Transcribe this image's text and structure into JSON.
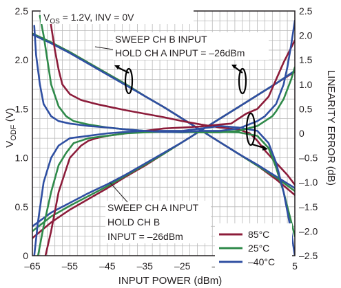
{
  "chart_data": {
    "type": "line",
    "xlabel": "INPUT POWER (dBm)",
    "ylabel_main": "V",
    "ylabel_sub": "ODF",
    "ylabel_unit": " (V)",
    "ylabel_right": "LINEARITY ERROR (dB)",
    "xlim": [
      -65,
      5
    ],
    "ylim": [
      0,
      2.5
    ],
    "y2lim": [
      -2.5,
      2.5
    ],
    "x_ticks": [
      -65,
      -55,
      -45,
      -35,
      -25,
      -15,
      -5,
      5
    ],
    "x_tick_labels": [
      "–65",
      "–55",
      "–45",
      "–35",
      "–25",
      "–15",
      "–5",
      "5"
    ],
    "y_ticks": [
      0,
      0.5,
      1.0,
      1.5,
      2.0,
      2.5
    ],
    "y_tick_labels": [
      "0",
      "0.5",
      "1.0",
      "1.5",
      "2.0",
      "2.5"
    ],
    "y2_ticks": [
      2.5,
      2.0,
      1.5,
      1.0,
      0.5,
      0,
      -0.5,
      -1.0,
      -1.5,
      -2.0,
      -2.5
    ],
    "y2_tick_labels": [
      "2.5",
      "2.0",
      "1.5",
      "1.0",
      "0.5",
      "0",
      "–0.5",
      "–1.0",
      "–1.5",
      "–2.0",
      "–2.5"
    ],
    "grid": true,
    "legend_position": "bottom-right",
    "annotations": {
      "condition_a": "V",
      "condition_sub": "OS",
      "condition_b": " = 1.2V, INV = 0V",
      "sweep_b_line1": "SWEEP CH B INPUT",
      "sweep_b_line2": "HOLD CH A INPUT = –26dBm",
      "sweep_a_line1": "SWEEP CH A INPUT",
      "sweep_a_line2": "HOLD CH B",
      "sweep_a_line3": "INPUT = –26dBm"
    },
    "series": [
      {
        "name": "85°C",
        "color": "#8c1c3a",
        "axis": "left",
        "group": "sweep_b_output",
        "x": [
          -65,
          -60,
          -55,
          -50,
          -45,
          -40,
          -35,
          -30,
          -25,
          -20,
          -15,
          -10,
          -5,
          0,
          5
        ],
        "y": [
          2.27,
          2.18,
          2.08,
          1.97,
          1.86,
          1.75,
          1.63,
          1.52,
          1.4,
          1.28,
          1.16,
          1.04,
          0.92,
          0.78,
          0.62
        ]
      },
      {
        "name": "25°C",
        "color": "#2f8a4a",
        "axis": "left",
        "group": "sweep_b_output",
        "x": [
          -65,
          -60,
          -55,
          -50,
          -45,
          -40,
          -35,
          -30,
          -25,
          -20,
          -15,
          -10,
          -5,
          0,
          5
        ],
        "y": [
          2.27,
          2.18,
          2.08,
          1.97,
          1.86,
          1.75,
          1.63,
          1.52,
          1.4,
          1.28,
          1.16,
          1.04,
          0.92,
          0.8,
          0.66
        ]
      },
      {
        "name": "–40°C",
        "color": "#2f4fa2",
        "axis": "left",
        "group": "sweep_b_output",
        "x": [
          -65,
          -60,
          -55,
          -50,
          -45,
          -40,
          -35,
          -30,
          -25,
          -20,
          -15,
          -10,
          -5,
          0,
          5
        ],
        "y": [
          2.26,
          2.17,
          2.07,
          1.96,
          1.85,
          1.74,
          1.63,
          1.52,
          1.4,
          1.28,
          1.16,
          1.04,
          0.93,
          0.81,
          0.69
        ]
      },
      {
        "name": "85°C",
        "color": "#8c1c3a",
        "axis": "left",
        "group": "sweep_a_output",
        "x": [
          -65,
          -60,
          -55,
          -50,
          -45,
          -40,
          -35,
          -30,
          -25,
          -20,
          -15,
          -10,
          -5,
          0,
          5
        ],
        "y": [
          0.18,
          0.34,
          0.47,
          0.58,
          0.69,
          0.81,
          0.92,
          1.04,
          1.16,
          1.28,
          1.4,
          1.52,
          1.64,
          1.76,
          1.88
        ]
      },
      {
        "name": "25°C",
        "color": "#2f8a4a",
        "axis": "left",
        "group": "sweep_a_output",
        "x": [
          -65,
          -60,
          -55,
          -50,
          -45,
          -40,
          -35,
          -30,
          -25,
          -20,
          -15,
          -10,
          -5,
          0,
          5
        ],
        "y": [
          0.25,
          0.4,
          0.51,
          0.61,
          0.71,
          0.82,
          0.93,
          1.04,
          1.16,
          1.28,
          1.4,
          1.52,
          1.64,
          1.76,
          1.89
        ]
      },
      {
        "name": "–40°C",
        "color": "#2f4fa2",
        "axis": "left",
        "group": "sweep_a_output",
        "x": [
          -65,
          -60,
          -55,
          -50,
          -45,
          -40,
          -35,
          -30,
          -25,
          -20,
          -15,
          -10,
          -5,
          0,
          5
        ],
        "y": [
          0.3,
          0.44,
          0.54,
          0.64,
          0.73,
          0.83,
          0.94,
          1.05,
          1.16,
          1.28,
          1.4,
          1.52,
          1.64,
          1.76,
          1.89
        ]
      },
      {
        "name": "85°C",
        "color": "#8c1c3a",
        "axis": "right",
        "group": "error_sweep_b",
        "x": [
          -60.5,
          -60,
          -59,
          -58,
          -57,
          -55,
          -52,
          -48,
          -45,
          -40,
          -35,
          -30,
          -25,
          -20,
          -15,
          -10,
          -7,
          -5,
          -3,
          0,
          3,
          5
        ],
        "y": [
          2.5,
          2.2,
          1.7,
          1.3,
          1.0,
          0.8,
          0.68,
          0.6,
          0.55,
          0.47,
          0.4,
          0.33,
          0.25,
          0.18,
          0.12,
          0.08,
          0.0,
          -0.15,
          -0.35,
          -0.6,
          -0.85,
          -1.05
        ]
      },
      {
        "name": "25°C",
        "color": "#2f8a4a",
        "axis": "right",
        "group": "error_sweep_b",
        "x": [
          -63,
          -62,
          -61,
          -60,
          -58,
          -56,
          -54,
          -50,
          -45,
          -40,
          -35,
          -30,
          -25,
          -20,
          -15,
          -10,
          -5,
          -2,
          0,
          2,
          4,
          5
        ],
        "y": [
          2.4,
          2.0,
          1.5,
          1.0,
          0.55,
          0.35,
          0.25,
          0.18,
          0.12,
          0.08,
          0.05,
          0.03,
          0.02,
          0.03,
          0.03,
          0.02,
          -0.05,
          -0.3,
          -0.7,
          -1.2,
          -1.8,
          -2.1
        ]
      },
      {
        "name": "–40°C",
        "color": "#2f4fa2",
        "axis": "right",
        "group": "error_sweep_b",
        "x": [
          -64.5,
          -64,
          -63,
          -62,
          -60,
          -58,
          -55,
          -50,
          -45,
          -40,
          -35,
          -30,
          -25,
          -20,
          -15,
          -10,
          -5,
          -2,
          0,
          2,
          4,
          5
        ],
        "y": [
          2.2,
          1.6,
          1.0,
          0.6,
          0.35,
          0.25,
          0.2,
          0.15,
          0.12,
          0.08,
          0.05,
          0.05,
          0.05,
          0.1,
          0.15,
          0.12,
          0.05,
          -0.2,
          -0.6,
          -1.2,
          -2.0,
          -2.5
        ]
      },
      {
        "name": "85°C",
        "color": "#8c1c3a",
        "axis": "right",
        "group": "error_sweep_a",
        "x": [
          -61.5,
          -60,
          -58,
          -55,
          -52,
          -50,
          -48,
          -45,
          -40,
          -35,
          -30,
          -25,
          -20,
          -15,
          -12,
          -10,
          -8,
          -5,
          -2,
          0,
          2,
          4,
          5
        ],
        "y": [
          -2.5,
          -2.0,
          -1.2,
          -0.5,
          -0.25,
          -0.15,
          -0.1,
          -0.05,
          0.0,
          0.05,
          0.1,
          0.12,
          0.14,
          0.18,
          0.2,
          0.3,
          0.4,
          0.5,
          0.75,
          1.1,
          1.45,
          1.75,
          1.9
        ]
      },
      {
        "name": "25°C",
        "color": "#2f8a4a",
        "axis": "right",
        "group": "error_sweep_a",
        "x": [
          -63.5,
          -62,
          -60,
          -58,
          -56,
          -54,
          -50,
          -45,
          -40,
          -35,
          -30,
          -25,
          -20,
          -15,
          -10,
          -5,
          -3,
          -1,
          0,
          2,
          4,
          5
        ],
        "y": [
          -2.5,
          -1.9,
          -1.2,
          -0.65,
          -0.4,
          -0.2,
          -0.1,
          -0.05,
          0.0,
          0.02,
          0.03,
          0.03,
          0.02,
          0.02,
          0.05,
          0.15,
          0.25,
          0.35,
          0.45,
          0.7,
          1.1,
          1.35
        ]
      },
      {
        "name": "–40°C",
        "color": "#2f4fa2",
        "axis": "right",
        "group": "error_sweep_a",
        "x": [
          -64.5,
          -63.5,
          -62,
          -60,
          -58,
          -55,
          -50,
          -45,
          -40,
          -35,
          -30,
          -25,
          -20,
          -15,
          -10,
          -5,
          -3,
          0,
          2,
          3,
          4,
          5
        ],
        "y": [
          -2.5,
          -1.8,
          -1.0,
          -0.5,
          -0.25,
          -0.1,
          -0.05,
          0.0,
          0.03,
          0.05,
          0.03,
          0.03,
          0.05,
          0.05,
          0.1,
          0.25,
          0.35,
          0.6,
          1.0,
          1.35,
          1.8,
          2.3
        ]
      }
    ],
    "legend": [
      {
        "label": "85°C",
        "color": "#8c1c3a"
      },
      {
        "label": "25°C",
        "color": "#2f8a4a"
      },
      {
        "label": "–40°C",
        "color": "#2f4fa2"
      }
    ]
  }
}
